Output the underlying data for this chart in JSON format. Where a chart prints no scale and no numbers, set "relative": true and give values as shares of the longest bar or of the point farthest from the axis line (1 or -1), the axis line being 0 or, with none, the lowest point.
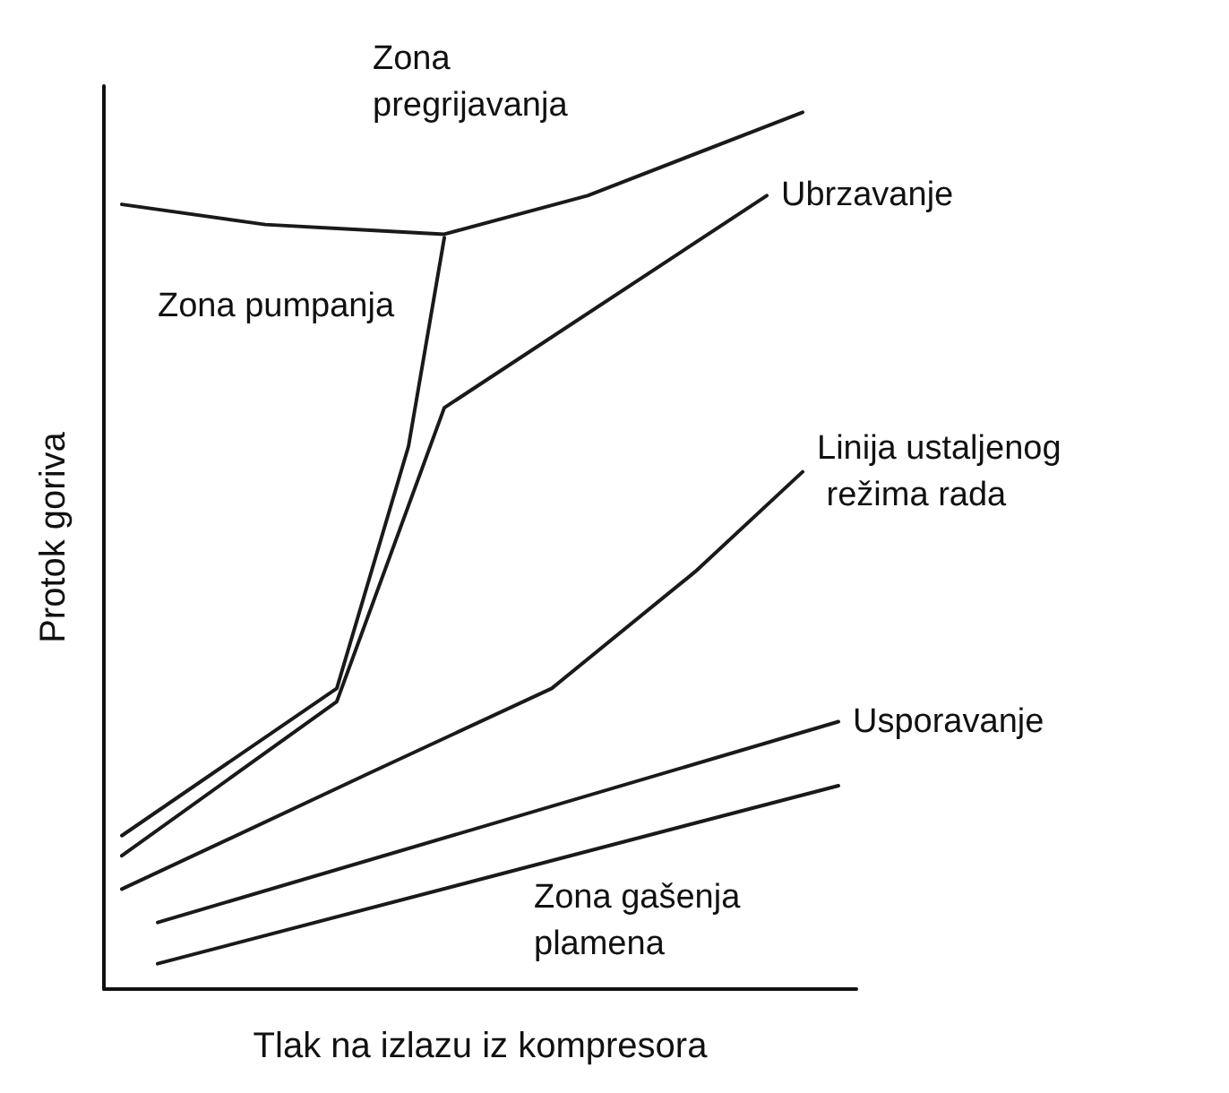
{
  "chart_data": {
    "type": "line",
    "relative": true,
    "xlabel": "Tlak na izlazu iz kompresora",
    "ylabel": "Protok goriva",
    "grid": false,
    "legend": false,
    "marker": "none",
    "line_style": "solid",
    "categories": [
      null,
      null,
      null,
      null,
      null,
      null,
      null,
      null,
      null,
      null,
      null,
      null,
      null,
      null,
      null,
      null,
      null,
      null,
      null,
      null,
      null
    ],
    "series": [
      {
        "color": "#1a1a1a",
        "values": [
          0.895,
          null,
          null,
          null,
          0.872,
          null,
          null,
          null,
          null,
          0.861,
          null,
          null,
          null,
          0.905,
          null,
          null,
          null,
          null,
          null,
          1,
          null
        ]
      },
      {
        "color": "#1a1a1a",
        "values": [
          0.175,
          null,
          null,
          null,
          null,
          null,
          0.343,
          null,
          0.619,
          0.857,
          null,
          null,
          null,
          null,
          null,
          null,
          null,
          null,
          null,
          null,
          null
        ]
      },
      {
        "name": "Ubrzavanje",
        "color": "#1a1a1a",
        "values": [
          0.152,
          null,
          null,
          null,
          null,
          null,
          0.328,
          null,
          null,
          0.663,
          null,
          null,
          null,
          null,
          null,
          null,
          null,
          null,
          0.905,
          null,
          null
        ]
      },
      {
        "name": "Linija ustaljenog režima rada",
        "color": "#1a1a1a",
        "values": [
          0.114,
          null,
          null,
          null,
          null,
          null,
          null,
          0.248,
          null,
          null,
          null,
          null,
          0.343,
          null,
          null,
          null,
          0.476,
          null,
          null,
          0.59,
          null
        ]
      },
      {
        "name": "Usporavanje",
        "color": "#1a1a1a",
        "values": [
          null,
          0.076,
          null,
          null,
          null,
          null,
          null,
          null,
          null,
          null,
          null,
          null,
          null,
          null,
          null,
          null,
          null,
          null,
          null,
          null,
          0.305
        ]
      },
      {
        "color": "#1a1a1a",
        "values": [
          null,
          0.029,
          null,
          null,
          null,
          null,
          null,
          null,
          null,
          null,
          null,
          null,
          null,
          null,
          null,
          null,
          null,
          null,
          null,
          null,
          0.232
        ]
      }
    ],
    "annotations": [
      "Zona pregrijavanja",
      "Zona pumpanja",
      "Zona gašenja plamena"
    ]
  }
}
